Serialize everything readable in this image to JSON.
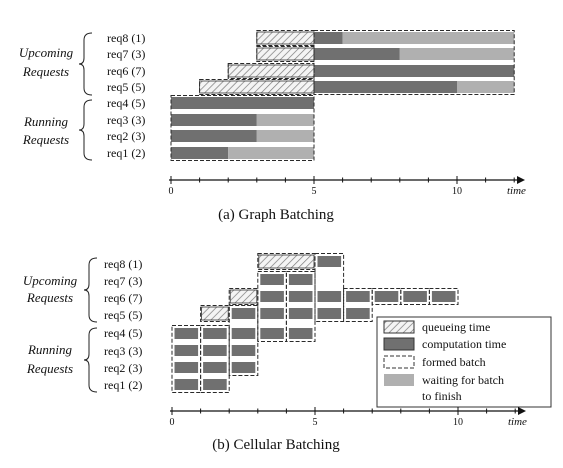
{
  "colors": {
    "computation": "#707070",
    "waiting": "#b0b0b0",
    "queue_fill": "#f4f4f4",
    "hatch": "#7a7a7a",
    "outline": "#2a2a2a",
    "axis": "#111111"
  },
  "group_labels": {
    "upcoming": [
      "Upcoming",
      "Requests"
    ],
    "running": [
      "Running",
      "Requests"
    ]
  },
  "requests": [
    "req8 (1)",
    "req7 (3)",
    "req6 (7)",
    "req5 (5)",
    "req4 (5)",
    "req3 (3)",
    "req2 (3)",
    "req1 (2)"
  ],
  "axis": {
    "ticks": [
      "0",
      "5",
      "10"
    ],
    "tick_values": [
      0,
      5,
      10
    ],
    "unit": "time"
  },
  "graph_batching": {
    "caption": "(a) Graph Batching",
    "queue": [
      [
        3,
        5
      ],
      [
        3,
        5
      ],
      [
        2,
        5
      ],
      [
        1,
        5
      ],
      null,
      null,
      null,
      null
    ],
    "computation": [
      [
        5,
        6
      ],
      [
        5,
        8
      ],
      [
        5,
        12
      ],
      [
        5,
        10
      ],
      [
        0,
        5
      ],
      [
        0,
        3
      ],
      [
        0,
        3
      ],
      [
        0,
        2
      ]
    ],
    "waiting": [
      [
        6,
        12
      ],
      [
        8,
        12
      ],
      null,
      [
        10,
        12
      ],
      null,
      [
        3,
        5
      ],
      [
        3,
        5
      ],
      [
        2,
        5
      ]
    ],
    "batches": [
      {
        "t": [
          5,
          12
        ],
        "rows": [
          0,
          3
        ]
      },
      {
        "t": [
          3,
          5
        ],
        "rows": [
          0,
          0
        ]
      },
      {
        "t": [
          3,
          5
        ],
        "rows": [
          1,
          1
        ]
      },
      {
        "t": [
          2,
          5
        ],
        "rows": [
          2,
          2
        ]
      },
      {
        "t": [
          1,
          5
        ],
        "rows": [
          3,
          3
        ]
      },
      {
        "t": [
          0,
          5
        ],
        "rows": [
          4,
          7
        ]
      }
    ]
  },
  "cellular_batching": {
    "caption": "(b) Cellular Batching",
    "queue": [
      [
        3,
        5
      ],
      null,
      [
        2,
        3
      ],
      [
        1,
        2
      ],
      null,
      null,
      null,
      null
    ],
    "cells": [
      [
        5
      ],
      [
        3,
        4
      ],
      [
        3,
        4,
        5,
        6,
        7,
        8,
        9
      ],
      [
        2,
        3,
        4,
        5,
        6
      ],
      [
        0,
        1,
        2,
        3,
        4
      ],
      [
        0,
        1,
        2
      ],
      [
        0,
        1,
        2
      ],
      [
        0,
        1
      ]
    ],
    "batches": [
      {
        "t": [
          0,
          1
        ],
        "rows": [
          4,
          7
        ]
      },
      {
        "t": [
          1,
          2
        ],
        "rows": [
          4,
          7
        ]
      },
      {
        "t": [
          2,
          3
        ],
        "rows": [
          3,
          6
        ]
      },
      {
        "t": [
          3,
          4
        ],
        "rows": [
          1,
          4
        ]
      },
      {
        "t": [
          4,
          5
        ],
        "rows": [
          1,
          4
        ]
      },
      {
        "t": [
          5,
          6
        ],
        "rows": [
          0,
          3
        ]
      },
      {
        "t": [
          6,
          7
        ],
        "rows": [
          2,
          3
        ]
      },
      {
        "t": [
          7,
          8
        ],
        "rows": [
          2,
          2
        ]
      },
      {
        "t": [
          8,
          9
        ],
        "rows": [
          2,
          2
        ]
      },
      {
        "t": [
          9,
          10
        ],
        "rows": [
          2,
          2
        ]
      },
      {
        "t": [
          3,
          5
        ],
        "rows": [
          0,
          0
        ]
      },
      {
        "t": [
          2,
          3
        ],
        "rows": [
          2,
          2
        ]
      },
      {
        "t": [
          1,
          2
        ],
        "rows": [
          3,
          3
        ]
      }
    ]
  },
  "legend": {
    "queueing": "queueing time",
    "computation": "computation time",
    "formed_batch": "formed batch",
    "waiting_line1": "waiting for batch",
    "waiting_line2": "to finish"
  }
}
